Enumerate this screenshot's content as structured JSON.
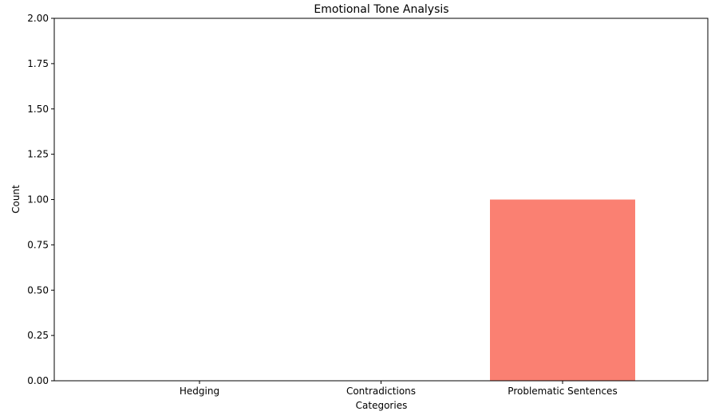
{
  "chart_data": {
    "type": "bar",
    "title": "Emotional Tone Analysis",
    "xlabel": "Categories",
    "ylabel": "Count",
    "categories": [
      "Hedging",
      "Contradictions",
      "Problematic Sentences"
    ],
    "values": [
      0,
      0,
      1
    ],
    "ylim": [
      0,
      2.0
    ],
    "yticks": [
      "0.00",
      "0.25",
      "0.50",
      "0.75",
      "1.00",
      "1.25",
      "1.50",
      "1.75",
      "2.00"
    ],
    "grid": false,
    "colors": [
      "#fa8072",
      "#fa8072",
      "#fa8072"
    ]
  }
}
